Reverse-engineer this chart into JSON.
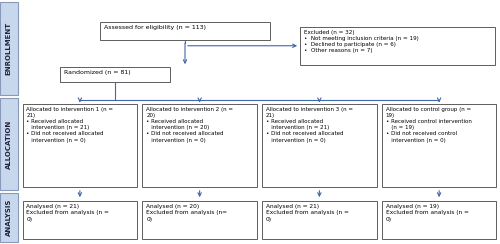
{
  "bg_color": "#ffffff",
  "sidebar_color": "#c8d8ec",
  "sidebar_border": "#8899bb",
  "box_fill": "#ffffff",
  "box_border": "#444444",
  "arrow_color": "#4466aa",
  "sidebar_labels": [
    "ENROLLMENT",
    "ALLOCATION",
    "ANALYSIS"
  ],
  "enrollment_box1_text": "Assessed for eligibility (n = 113)",
  "excluded_box_text": "Excluded (n = 32)\n•  Not meeting inclusion criteria (n = 19)\n•  Declined to participate (n = 6)\n•  Other reasons (n = 7)",
  "randomized_box_text": "Randomized (n = 81)",
  "alloc_texts": [
    "Allocated to intervention 1 (n =\n21)\n• Received allocated\n   intervention (n = 21)\n• Did not received allocated\n   intervention (n = 0)",
    "Allocated to intervention 2 (n =\n20)\n• Received allocated\n   intervention (n = 20)\n• Did not received allocated\n   intervention (n = 0)",
    "Allocated to intervention 3 (n =\n21)\n• Received allocated\n   intervention (n = 21)\n• Did not received allocated\n   intervention (n = 0)",
    "Allocated to control group (n =\n19)\n• Received control intervention\n   (n = 19)\n• Did not received control\n   intervention (n = 0)"
  ],
  "analysis_texts": [
    "Analysed (n = 21)\nExcluded from analysis (n =\n0)",
    "Analysed (n = 20)\nExcluded from analysis (n=\n0)",
    "Analysed (n = 21)\nExcluded from analysis (n =\n0)",
    "Analysed (n = 19)\nExcluded from analysis (n =\n0)"
  ],
  "font_size": 4.5,
  "sidebar_font_size": 5.0
}
